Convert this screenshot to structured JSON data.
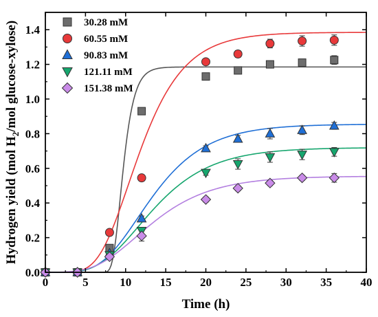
{
  "chart_data": {
    "type": "scatter",
    "title": "",
    "xlabel": "Time (h)",
    "ylabel": "Hydrogen yield (mol H2/mol glucose-xylose)",
    "ylabel_parts": {
      "before": "Hydrogen yield (mol H",
      "sub": "2",
      "after": "/mol glucose-xylose)"
    },
    "xlim": [
      0,
      40
    ],
    "ylim": [
      0,
      1.5
    ],
    "xticks": [
      0,
      5,
      10,
      15,
      20,
      25,
      30,
      35,
      40
    ],
    "xtick_labels": [
      "0",
      "5",
      "10",
      "15",
      "20",
      "25",
      "30",
      "35",
      "40"
    ],
    "yticks": [
      0.0,
      0.2,
      0.4,
      0.6,
      0.8,
      1.0,
      1.2,
      1.4
    ],
    "ytick_labels": [
      "0.0",
      "0.2",
      "0.4",
      "0.6",
      "0.8",
      "1.0",
      "1.2",
      "1.4"
    ],
    "grid": false,
    "legend_position": "top-left",
    "series": [
      {
        "name": "30.28 mM",
        "marker": "square",
        "color": "#6d6d6d",
        "line_color": "#555555",
        "x": [
          0,
          4,
          8,
          12,
          20,
          24,
          28,
          32,
          36
        ],
        "y": [
          0.0,
          0.0,
          0.14,
          0.93,
          1.13,
          1.165,
          1.2,
          1.21,
          1.225
        ],
        "err": [
          0.01,
          0.01,
          0.01,
          0.02,
          0.02,
          0.015,
          0.02,
          0.02,
          0.025
        ],
        "fit": {
          "P": 1.185,
          "Rm": 0.46,
          "lambda": 8.4
        }
      },
      {
        "name": "60.55 mM",
        "marker": "circle",
        "color": "#e8393a",
        "line_color": "#e8393a",
        "x": [
          0,
          4,
          8,
          12,
          20,
          24,
          28,
          32,
          36
        ],
        "y": [
          0.0,
          0.0,
          0.23,
          0.545,
          1.215,
          1.26,
          1.32,
          1.335,
          1.34
        ],
        "err": [
          0.01,
          0.01,
          0.015,
          0.015,
          0.015,
          0.02,
          0.025,
          0.03,
          0.03
        ],
        "fit": {
          "P": 1.385,
          "Rm": 0.135,
          "lambda": 6.6
        }
      },
      {
        "name": "90.83 mM",
        "marker": "triangle-up",
        "color": "#1f6fd6",
        "line_color": "#1f6fd6",
        "x": [
          0,
          4,
          8,
          12,
          20,
          24,
          28,
          32,
          36
        ],
        "y": [
          0.0,
          0.0,
          0.11,
          0.31,
          0.715,
          0.77,
          0.8,
          0.82,
          0.845
        ],
        "err": [
          0.01,
          0.01,
          0.01,
          0.015,
          0.015,
          0.02,
          0.03,
          0.025,
          0.02
        ],
        "fit": {
          "P": 0.855,
          "Rm": 0.068,
          "lambda": 6.9
        }
      },
      {
        "name": "121.11 mM",
        "marker": "triangle-down",
        "color": "#16a66e",
        "line_color": "#16a66e",
        "x": [
          0,
          4,
          8,
          12,
          20,
          24,
          28,
          32,
          36
        ],
        "y": [
          0.0,
          0.0,
          0.1,
          0.24,
          0.575,
          0.625,
          0.665,
          0.68,
          0.695
        ],
        "err": [
          0.01,
          0.01,
          0.01,
          0.015,
          0.015,
          0.03,
          0.03,
          0.03,
          0.025
        ],
        "fit": {
          "P": 0.72,
          "Rm": 0.054,
          "lambda": 6.7
        }
      },
      {
        "name": "151.38 mM",
        "marker": "diamond",
        "color": "#c98be8",
        "line_color": "#b37fe0",
        "x": [
          0,
          4,
          8,
          12,
          20,
          24,
          28,
          32,
          36
        ],
        "y": [
          0.0,
          0.0,
          0.09,
          0.21,
          0.42,
          0.485,
          0.515,
          0.545,
          0.545
        ],
        "err": [
          0.01,
          0.01,
          0.01,
          0.03,
          0.015,
          0.015,
          0.015,
          0.015,
          0.025
        ],
        "fit": {
          "P": 0.555,
          "Rm": 0.04,
          "lambda": 6.2
        }
      }
    ]
  }
}
